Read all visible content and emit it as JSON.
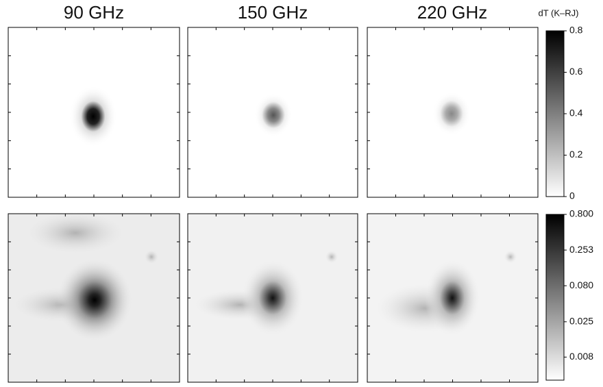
{
  "panels": {
    "titles": [
      "90 GHz",
      "150 GHz",
      "220 GHz"
    ]
  },
  "colorbars": [
    {
      "label": "dT (K–RJ)",
      "scale": "linear",
      "lim": [
        0,
        0.8
      ],
      "ticks": [
        0,
        0.2,
        0.4,
        0.6,
        0.8
      ]
    },
    {
      "scale": "log",
      "lim": [
        0.0038,
        0.8
      ],
      "ticks": [
        0.008,
        0.025,
        {
          "value": 0.08,
          "label": "0.080"
        },
        0.253,
        {
          "value": 0.8,
          "label": "0.800"
        }
      ]
    }
  ]
}
